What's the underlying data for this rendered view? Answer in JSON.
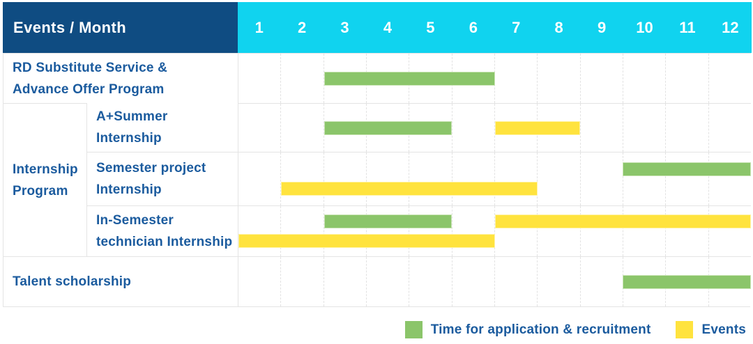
{
  "header": {
    "title": "Events / Month"
  },
  "colors": {
    "header_bg": "#0f4c82",
    "months_bg": "#10d3ef",
    "green": "#8bc56a",
    "green_edge": "#c9e4b4",
    "yellow": "#ffe33e",
    "yellow_edge": "#fff3a6",
    "label_text": "#1b5b9e",
    "grid_line": "#e4e4e4"
  },
  "chart_data": {
    "type": "gantt",
    "title": "Events / Month",
    "months": [
      "1",
      "2",
      "3",
      "4",
      "5",
      "6",
      "7",
      "8",
      "9",
      "10",
      "11",
      "12"
    ],
    "month_range": [
      1,
      12
    ],
    "rows": [
      {
        "group": "",
        "label_lines": [
          "RD Substitute Service &",
          "Advance Offer Program"
        ],
        "lines": [
          [
            {
              "color": "green",
              "start": 3,
              "end": 6
            }
          ]
        ]
      },
      {
        "group": "Internship Program",
        "label_lines": [
          "A+Summer",
          "Internship"
        ],
        "lines": [
          [
            {
              "color": "green",
              "start": 3,
              "end": 5
            },
            {
              "color": "yellow",
              "start": 7,
              "end": 8
            }
          ]
        ]
      },
      {
        "group": "Internship Program",
        "label_lines": [
          "Semester project",
          "Internship"
        ],
        "lines": [
          [
            {
              "color": "green",
              "start": 10,
              "end": 12
            }
          ],
          [
            {
              "color": "yellow",
              "start": 2,
              "end": 7
            }
          ]
        ]
      },
      {
        "group": "Internship Program",
        "label_lines": [
          "In-Semester",
          "technician Internship"
        ],
        "lines": [
          [
            {
              "color": "green",
              "start": 3,
              "end": 5
            },
            {
              "color": "yellow",
              "start": 7,
              "end": 12
            }
          ],
          [
            {
              "color": "yellow",
              "start": 1,
              "end": 6
            }
          ]
        ]
      },
      {
        "group": "",
        "label_lines": [
          "Talent scholarship"
        ],
        "lines": [
          [
            {
              "color": "green",
              "start": 10,
              "end": 12
            }
          ]
        ]
      }
    ],
    "legend": [
      {
        "swatch": "green",
        "label": "Time for application & recruitment"
      },
      {
        "swatch": "yellow",
        "label": "Events"
      }
    ]
  }
}
